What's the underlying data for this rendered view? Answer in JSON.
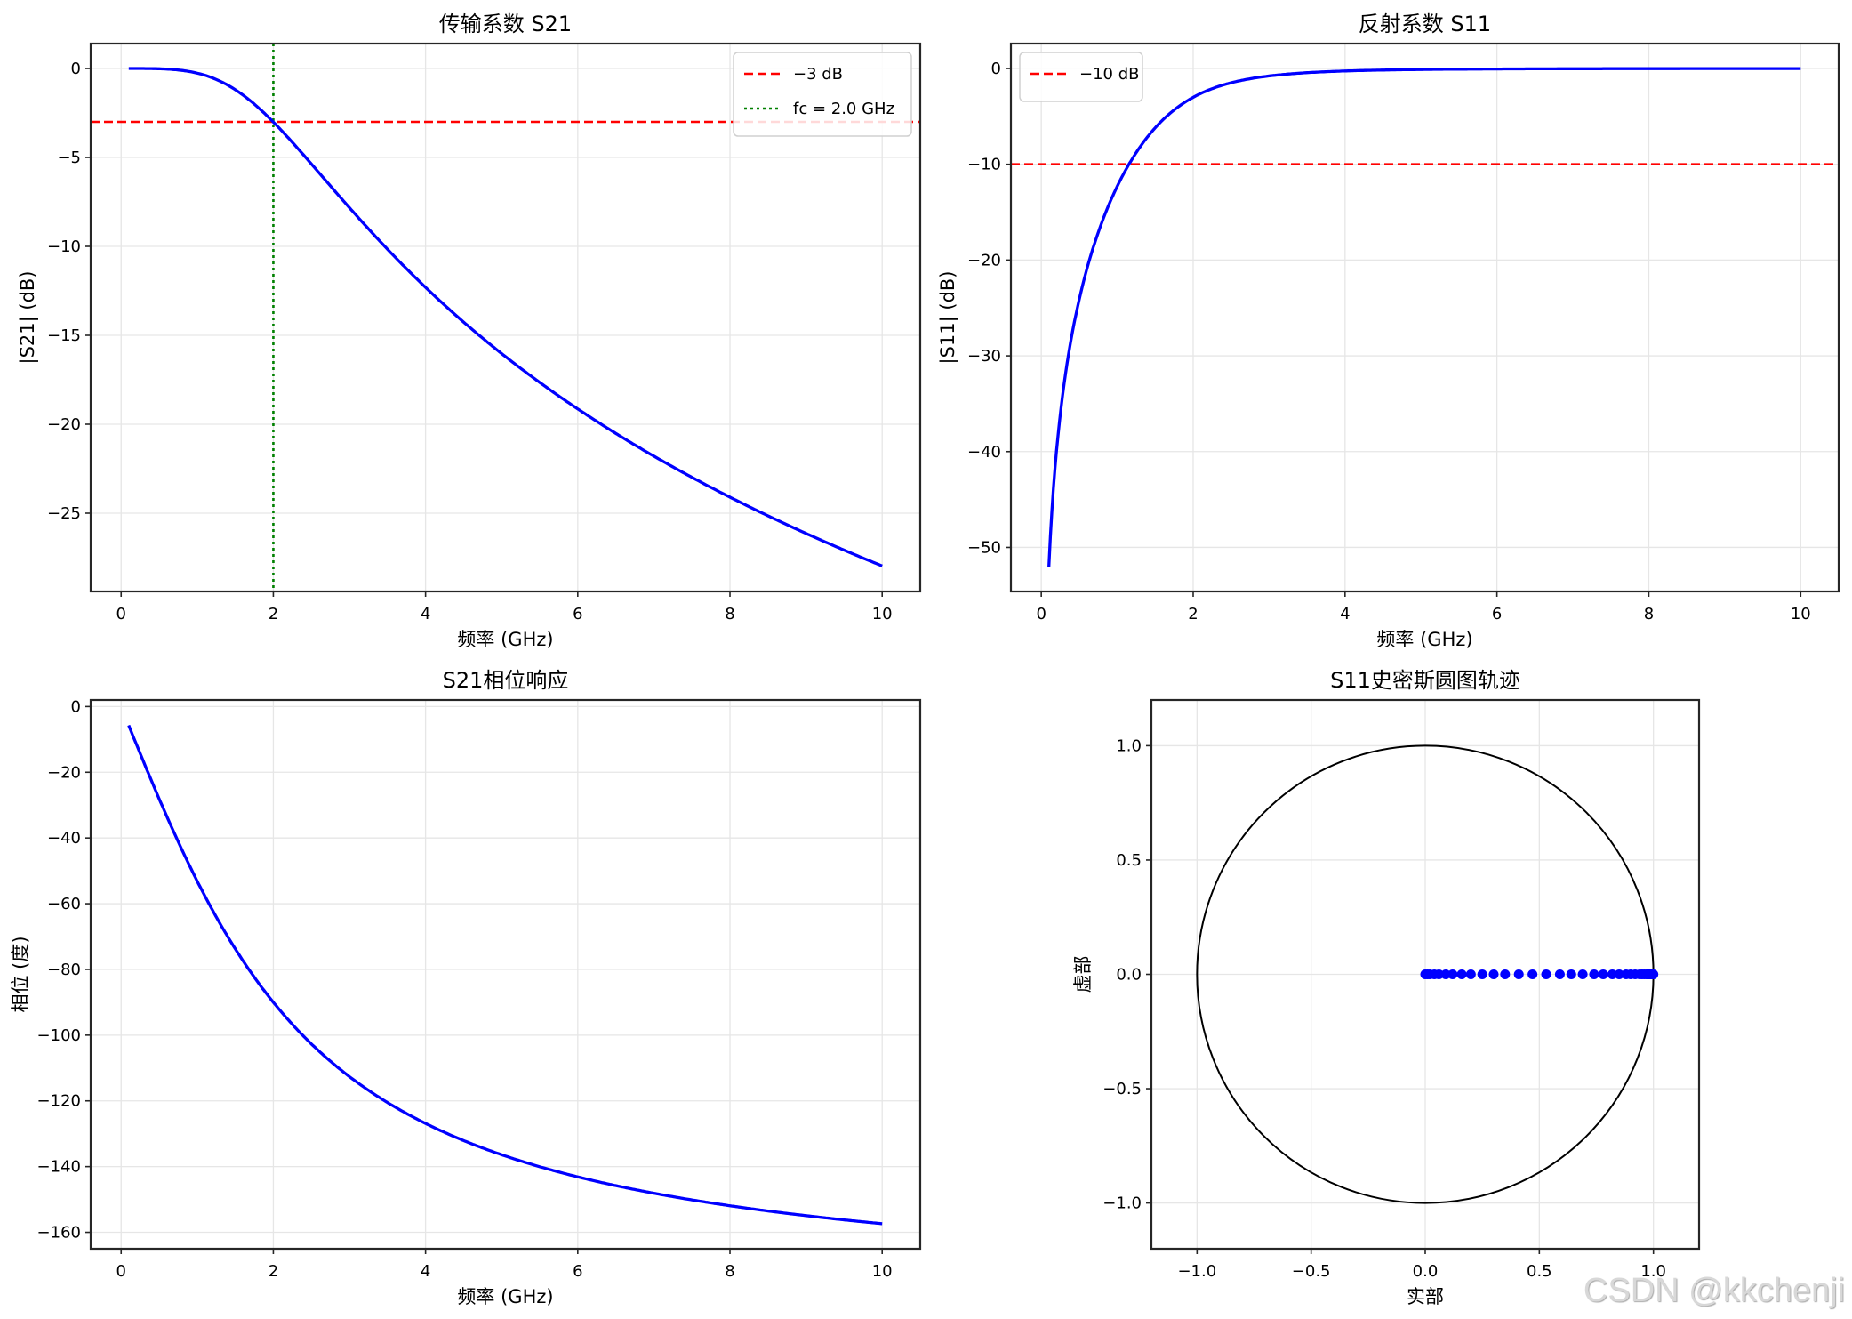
{
  "watermark": "CSDN @kkchenji",
  "colors": {
    "curve": "#0000ff",
    "ref_line": "#ff0000",
    "fc_line": "#008000",
    "grid": "#e6e6e6",
    "axes": "#262626",
    "circle": "#000000"
  },
  "chart_data": [
    {
      "id": "s21_mag",
      "type": "line",
      "title": "传输系数 S21",
      "xlabel": "频率 (GHz)",
      "ylabel": "|S21| (dB)",
      "xlim": [
        -0.4,
        10.5
      ],
      "ylim": [
        -29.4,
        1.4
      ],
      "xticks": [
        0,
        2,
        4,
        6,
        8,
        10
      ],
      "yticks": [
        0,
        -5,
        -10,
        -15,
        -20,
        -25
      ],
      "grid": true,
      "legend": {
        "position": "upper right",
        "entries": [
          "-3 dB",
          "fc = 2.0 GHz"
        ]
      },
      "ref_lines": [
        {
          "orientation": "h",
          "value": -3,
          "style": "dashed",
          "color": "#ff0000",
          "label": "-3 dB"
        },
        {
          "orientation": "v",
          "value": 2.0,
          "style": "dotted",
          "color": "#008000",
          "label": "fc = 2.0 GHz"
        }
      ],
      "series": [
        {
          "name": "|S21|",
          "color": "#0000ff",
          "x": [
            0.1,
            0.5,
            1.0,
            1.5,
            2.0,
            2.5,
            3.0,
            3.5,
            4.0,
            5.0,
            6.0,
            7.0,
            8.0,
            9.0,
            10.0
          ],
          "y": [
            0.0,
            -0.02,
            -0.26,
            -1.06,
            -3.01,
            -5.55,
            -8.16,
            -10.6,
            -12.3,
            -15.99,
            -19.12,
            -21.8,
            -24.1,
            -26.1,
            -27.97
          ]
        }
      ]
    },
    {
      "id": "s11_mag",
      "type": "line",
      "title": "反射系数 S11",
      "xlabel": "频率 (GHz)",
      "ylabel": "|S11| (dB)",
      "xlim": [
        -0.4,
        10.5
      ],
      "ylim": [
        -54.6,
        2.6
      ],
      "xticks": [
        0,
        2,
        4,
        6,
        8,
        10
      ],
      "yticks": [
        0,
        -10,
        -20,
        -30,
        -40,
        -50
      ],
      "grid": true,
      "legend": {
        "position": "upper left",
        "entries": [
          "-10 dB"
        ]
      },
      "ref_lines": [
        {
          "orientation": "h",
          "value": -10,
          "style": "dashed",
          "color": "#ff0000",
          "label": "-10 dB"
        }
      ],
      "series": [
        {
          "name": "|S11|",
          "color": "#0000ff",
          "x": [
            0.1,
            0.2,
            0.3,
            0.4,
            0.5,
            0.6,
            0.8,
            1.0,
            1.2,
            1.5,
            2.0,
            2.5,
            3.0,
            4.0,
            5.0,
            6.0,
            8.0,
            10.0
          ],
          "y": [
            -52.0,
            -40.0,
            -33.0,
            -28.0,
            -24.1,
            -20.9,
            -15.9,
            -12.3,
            -9.6,
            -6.6,
            -3.01,
            -1.55,
            -0.83,
            -0.26,
            -0.11,
            -0.05,
            -0.02,
            -0.01
          ]
        }
      ]
    },
    {
      "id": "s21_phase",
      "type": "line",
      "title": "S21相位响应",
      "xlabel": "频率 (GHz)",
      "ylabel": "相位 (度)",
      "xlim": [
        -0.4,
        10.5
      ],
      "ylim": [
        -165,
        2
      ],
      "xticks": [
        0,
        2,
        4,
        6,
        8,
        10
      ],
      "yticks": [
        0,
        -20,
        -40,
        -60,
        -80,
        -100,
        -120,
        -140,
        -160
      ],
      "grid": true,
      "series": [
        {
          "name": "phase",
          "color": "#0000ff",
          "x": [
            0.1,
            0.5,
            1.0,
            1.5,
            2.0,
            2.5,
            3.0,
            4.0,
            5.0,
            6.0,
            7.0,
            8.0,
            9.0,
            10.0
          ],
          "y": [
            -5.7,
            -28.1,
            -53.1,
            -73.7,
            -90.0,
            -102.7,
            -112.6,
            -126.9,
            -136.4,
            -143.1,
            -148.1,
            -151.9,
            -154.9,
            -157.4
          ]
        }
      ]
    },
    {
      "id": "s11_smith",
      "type": "scatter",
      "title": "S11史密斯圆图轨迹",
      "xlabel": "实部",
      "ylabel": "虚部",
      "xlim": [
        -1.2,
        1.2
      ],
      "ylim": [
        -1.2,
        1.2
      ],
      "xticks": [
        -1.0,
        -0.5,
        0.0,
        0.5,
        1.0
      ],
      "yticks": [
        1.0,
        0.5,
        0.0,
        -0.5,
        -1.0
      ],
      "grid": true,
      "unit_circle": {
        "center": [
          0,
          0
        ],
        "radius": 1.0,
        "color": "#000000"
      },
      "series": [
        {
          "name": "S11",
          "color": "#0000ff",
          "marker": "o",
          "x": [
            0.0,
            0.01,
            0.02,
            0.04,
            0.06,
            0.09,
            0.12,
            0.16,
            0.2,
            0.25,
            0.3,
            0.35,
            0.41,
            0.47,
            0.53,
            0.59,
            0.64,
            0.69,
            0.74,
            0.78,
            0.82,
            0.85,
            0.88,
            0.9,
            0.92,
            0.94,
            0.95,
            0.96,
            0.97,
            0.975,
            0.98,
            0.985,
            0.99,
            0.993,
            0.996,
            1.0
          ],
          "y": [
            0,
            0,
            0,
            0,
            0,
            0,
            0,
            0,
            0,
            0,
            0,
            0,
            0,
            0,
            0,
            0,
            0,
            0,
            0,
            0,
            0,
            0,
            0,
            0,
            0,
            0,
            0,
            0,
            0,
            0,
            0,
            0,
            0,
            0,
            0,
            0
          ]
        }
      ]
    }
  ]
}
